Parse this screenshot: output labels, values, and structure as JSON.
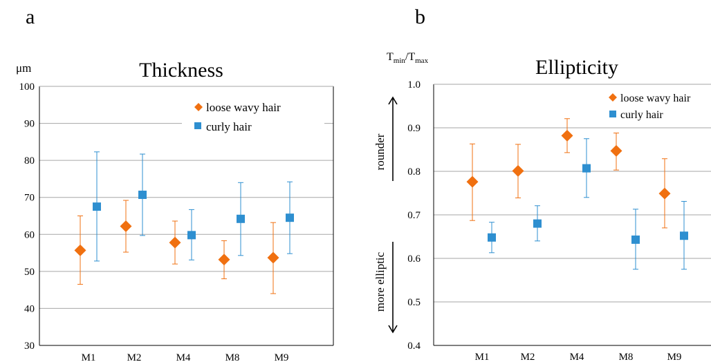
{
  "colors": {
    "loose": "#F07010",
    "curly": "#2E8FD0",
    "grid": "#A6A6A6",
    "axis": "#000000"
  },
  "panels": [
    {
      "letter": "a",
      "unit": "μm",
      "title": "Thickness",
      "legend": [
        "loose wavy hair",
        "curly hair"
      ]
    },
    {
      "letter": "b",
      "unit_main": "T",
      "unit_sub1": "min",
      "unit_slash": "/T",
      "unit_sub2": "max",
      "title": "Ellipticity",
      "legend": [
        "loose wavy hair",
        "curly hair"
      ],
      "arrow_up_label": "rounder",
      "arrow_down_label": "more elliptic"
    }
  ],
  "chart_data": [
    {
      "type": "scatter",
      "title": "Thickness",
      "ylabel": "μm",
      "xlabel": "",
      "categories": [
        "M1",
        "M2",
        "M4",
        "M8",
        "M9"
      ],
      "ylim": [
        30,
        100
      ],
      "yticks": [
        30,
        40,
        50,
        60,
        70,
        80,
        90,
        100
      ],
      "grid": true,
      "legend_position": "top-right",
      "series": [
        {
          "name": "loose wavy hair",
          "marker": "diamond",
          "values": [
            55.7,
            62.2,
            57.8,
            53.2,
            53.7
          ],
          "err_low": [
            46.5,
            55.2,
            52.0,
            48.0,
            44.0
          ],
          "err_high": [
            65.0,
            69.2,
            63.6,
            58.3,
            63.2
          ]
        },
        {
          "name": "curly hair",
          "marker": "square",
          "values": [
            67.5,
            70.7,
            59.8,
            64.2,
            64.5
          ],
          "err_low": [
            52.8,
            59.7,
            53.1,
            54.3,
            54.8
          ],
          "err_high": [
            82.3,
            81.7,
            66.7,
            74.0,
            74.2
          ]
        }
      ]
    },
    {
      "type": "scatter",
      "title": "Ellipticity",
      "ylabel": "Tmin/Tmax",
      "xlabel": "",
      "categories": [
        "M1",
        "M2",
        "M4",
        "M8",
        "M9"
      ],
      "ylim": [
        0.4,
        1.0
      ],
      "yticks": [
        "0.4",
        "0.5",
        "0.6",
        "0.7",
        "0.8",
        "0.9",
        "1.0"
      ],
      "grid": true,
      "legend_position": "top-right",
      "series": [
        {
          "name": "loose wavy hair",
          "marker": "diamond",
          "values": [
            0.776,
            0.801,
            0.882,
            0.847,
            0.749
          ],
          "err_low": [
            0.687,
            0.739,
            0.843,
            0.803,
            0.67
          ],
          "err_high": [
            0.863,
            0.862,
            0.921,
            0.888,
            0.829
          ]
        },
        {
          "name": "curly hair",
          "marker": "square",
          "values": [
            0.648,
            0.68,
            0.807,
            0.643,
            0.652
          ],
          "err_low": [
            0.613,
            0.64,
            0.74,
            0.575,
            0.575
          ],
          "err_high": [
            0.683,
            0.721,
            0.875,
            0.713,
            0.731
          ]
        }
      ]
    }
  ]
}
